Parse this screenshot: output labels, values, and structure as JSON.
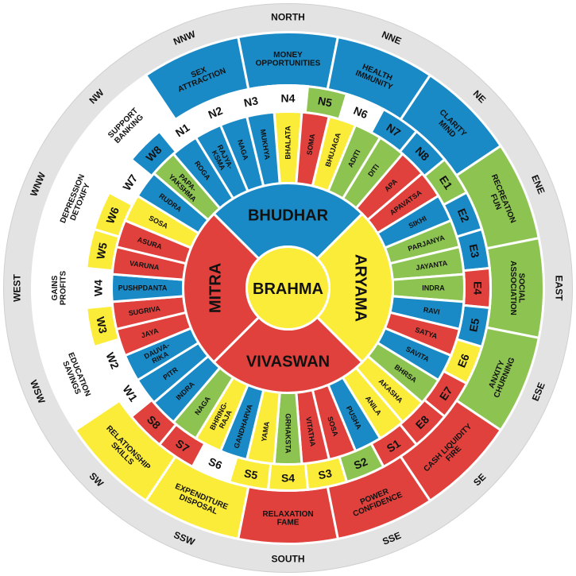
{
  "colors": {
    "red": "#e0413d",
    "blue": "#1a8ac6",
    "green": "#8dc451",
    "yellow": "#fcec3a",
    "white": "#ffffff",
    "ring": "#e3e3e3"
  },
  "center": {
    "label": "BRAHMA",
    "color": "yellow"
  },
  "inner_ring": [
    {
      "label": "BHUDHAR",
      "color": "blue",
      "start": 315,
      "end": 45
    },
    {
      "label": "ARYAMA",
      "color": "yellow",
      "start": 45,
      "end": 135
    },
    {
      "label": "VIVASWAN",
      "color": "red",
      "start": 135,
      "end": 225
    },
    {
      "label": "MITRA",
      "color": "red",
      "start": 225,
      "end": 315
    }
  ],
  "middle_ring": [
    {
      "label": "BHALATA",
      "color": "yellow"
    },
    {
      "label": "SOMA",
      "color": "red"
    },
    {
      "label": "BHUJAGA",
      "color": "yellow"
    },
    {
      "label": "ADITI",
      "color": "green"
    },
    {
      "label": "DITI",
      "color": "green"
    },
    {
      "label": "APA",
      "color": "red"
    },
    {
      "label": "APAVATSA",
      "color": "red"
    },
    {
      "label": "SIKHI",
      "color": "blue"
    },
    {
      "label": "PARJANYA",
      "color": "green"
    },
    {
      "label": "JAYANTA",
      "color": "green"
    },
    {
      "label": "INDRA",
      "color": "green"
    },
    {
      "label": "RAVI",
      "color": "blue"
    },
    {
      "label": "SATYA",
      "color": "red"
    },
    {
      "label": "SAVITA",
      "color": "blue"
    },
    {
      "label": "BHRSA",
      "color": "green"
    },
    {
      "label": "AKASHA",
      "color": "yellow"
    },
    {
      "label": "ANILA",
      "color": "yellow"
    },
    {
      "label": "PUSHA",
      "color": "blue"
    },
    {
      "label": "SOSA",
      "color": "red"
    },
    {
      "label": "VITATHA",
      "color": "red"
    },
    {
      "label": "GRHAKSTA",
      "color": "green"
    },
    {
      "label": "YAMA",
      "color": "yellow"
    },
    {
      "label": "GANDHARVA",
      "color": "blue"
    },
    {
      "label": "BHRING-RAJA",
      "color": "yellow"
    },
    {
      "label": "NAGA",
      "color": "green"
    },
    {
      "label": "INDRA",
      "color": "blue"
    },
    {
      "label": "PITR",
      "color": "blue"
    },
    {
      "label": "DAUVA-RIKA",
      "color": "blue"
    },
    {
      "label": "JAYA",
      "color": "red"
    },
    {
      "label": "SUGRIVA",
      "color": "red"
    },
    {
      "label": "PUSHPDANTA",
      "color": "blue"
    },
    {
      "label": "VARUNA",
      "color": "red"
    },
    {
      "label": "ASURA",
      "color": "red"
    },
    {
      "label": "SOSA",
      "color": "yellow"
    },
    {
      "label": "RUDRA",
      "color": "blue"
    },
    {
      "label": "PAPA-YAKSHMA",
      "color": "green"
    },
    {
      "label": "ROGA",
      "color": "blue"
    },
    {
      "label": "RAJYA-KSMA",
      "color": "blue"
    },
    {
      "label": "NAGA",
      "color": "blue"
    },
    {
      "label": "MUKHYA",
      "color": "blue"
    }
  ],
  "pada_ring": [
    {
      "label": "N4",
      "color": "white"
    },
    {
      "label": "N5",
      "color": "green"
    },
    {
      "label": "N6",
      "color": "white"
    },
    {
      "label": "N7",
      "color": "blue"
    },
    {
      "label": "N8",
      "color": "blue"
    },
    {
      "label": "E1",
      "color": "green"
    },
    {
      "label": "E2",
      "color": "blue"
    },
    {
      "label": "E3",
      "color": "blue"
    },
    {
      "label": "E4",
      "color": "red"
    },
    {
      "label": "E5",
      "color": "blue"
    },
    {
      "label": "E6",
      "color": "yellow"
    },
    {
      "label": "E7",
      "color": "red"
    },
    {
      "label": "E8",
      "color": "red"
    },
    {
      "label": "S1",
      "color": "red"
    },
    {
      "label": "S2",
      "color": "green"
    },
    {
      "label": "S3",
      "color": "yellow"
    },
    {
      "label": "S4",
      "color": "yellow"
    },
    {
      "label": "S5",
      "color": "yellow"
    },
    {
      "label": "S6",
      "color": "white"
    },
    {
      "label": "S7",
      "color": "red"
    },
    {
      "label": "S8",
      "color": "red"
    },
    {
      "label": "W1",
      "color": "white"
    },
    {
      "label": "W2",
      "color": "white"
    },
    {
      "label": "W3",
      "color": "yellow"
    },
    {
      "label": "W4",
      "color": "white"
    },
    {
      "label": "W5",
      "color": "yellow"
    },
    {
      "label": "W6",
      "color": "yellow"
    },
    {
      "label": "W7",
      "color": "white"
    },
    {
      "label": "W8",
      "color": "blue"
    },
    {
      "label": "N1",
      "color": "white"
    },
    {
      "label": "N2",
      "color": "white"
    },
    {
      "label": "N3",
      "color": "white"
    }
  ],
  "zone_ring": [
    {
      "label": "MONEY OPPORTUNITIES",
      "color": "blue"
    },
    {
      "label": "HEALTH IMMUNITY",
      "color": "blue"
    },
    {
      "label": "CLARITY MIND",
      "color": "blue"
    },
    {
      "label": "RECREATION FUN",
      "color": "green"
    },
    {
      "label": "SOCIAL ASSOCIATION",
      "color": "green"
    },
    {
      "label": "ANXITY CHURNING",
      "color": "green"
    },
    {
      "label": "CASH LIQUIDITY FIRE",
      "color": "red"
    },
    {
      "label": "POWER CONFIDENCE",
      "color": "red"
    },
    {
      "label": "RELAXATION FAME",
      "color": "red"
    },
    {
      "label": "EXPENDITURE DISPOSAL",
      "color": "yellow"
    },
    {
      "label": "RELATIONSHIP SKILLS",
      "color": "yellow"
    },
    {
      "label": "EDUCATION SAVINGS",
      "color": "white"
    },
    {
      "label": "GAINS PROFITS",
      "color": "white"
    },
    {
      "label": "DEPRESSION DETOXIFY",
      "color": "white"
    },
    {
      "label": "SUPPORT BANKING",
      "color": "white"
    },
    {
      "label": "SEX ATTRACTION",
      "color": "blue"
    }
  ],
  "directions": [
    "NORTH",
    "NNE",
    "NE",
    "ENE",
    "EAST",
    "ESE",
    "SE",
    "SSE",
    "SOUTH",
    "SSW",
    "SW",
    "WSW",
    "WEST",
    "WNW",
    "NW",
    "NNW"
  ]
}
